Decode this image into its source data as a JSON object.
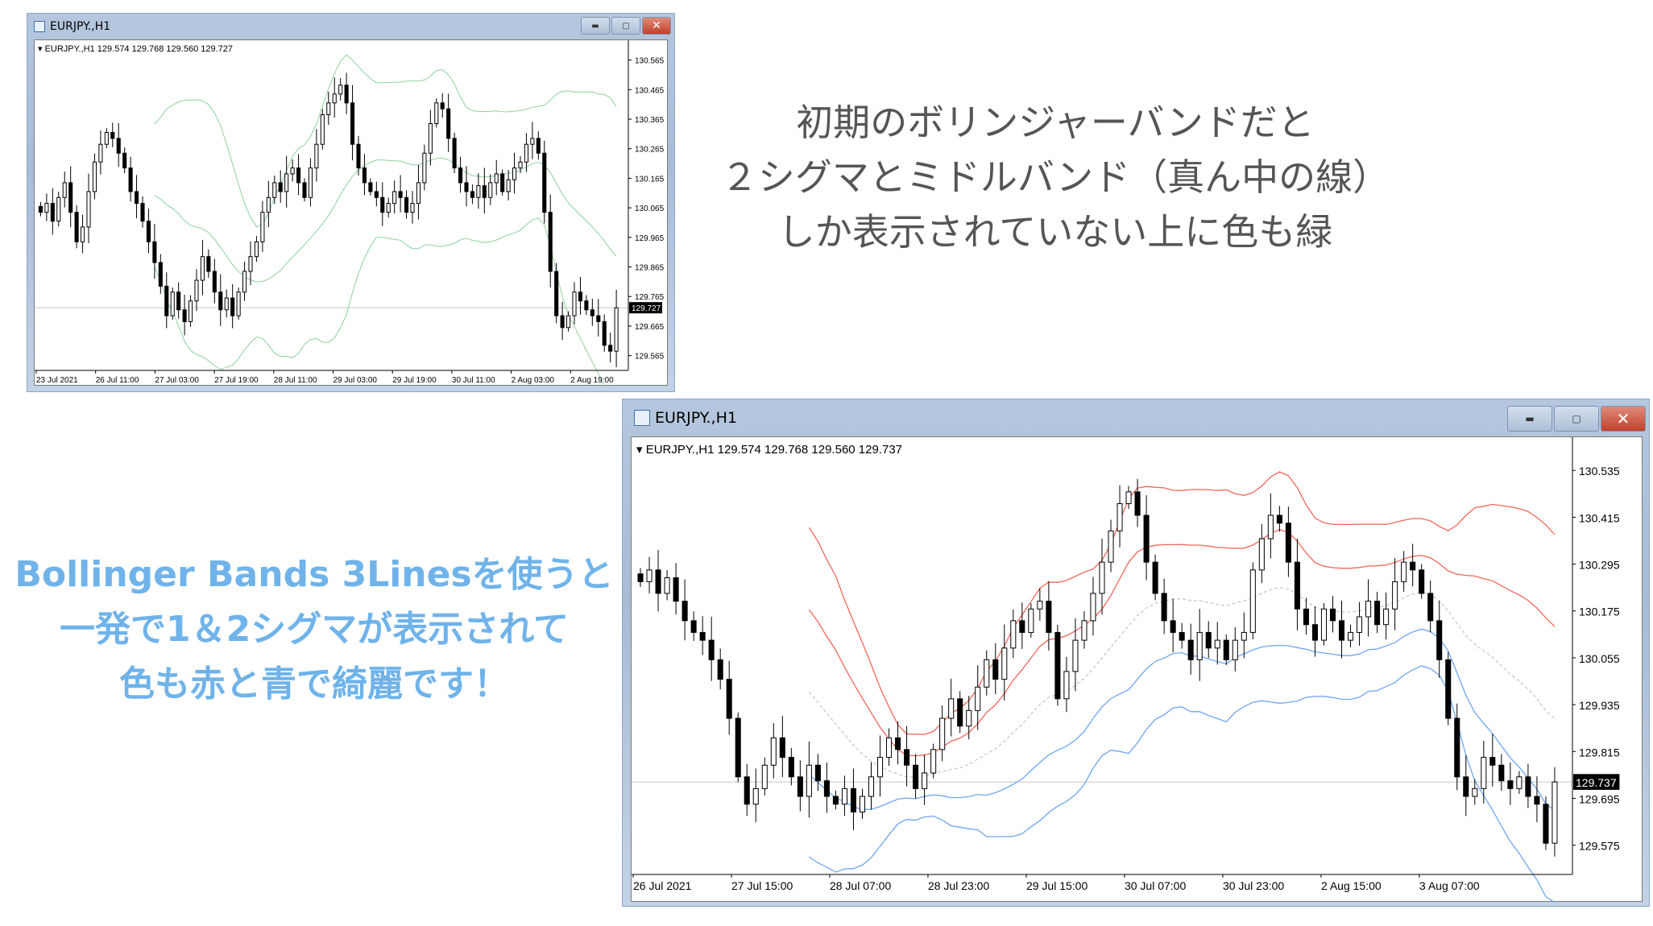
{
  "top_window": {
    "title": "EURJPY.,H1",
    "legend": "EURJPY.,H1  129.574 129.768 129.560 129.727",
    "current_price": "129.727",
    "price_ticks": [
      "130.565",
      "130.465",
      "130.365",
      "130.265",
      "130.165",
      "130.065",
      "129.965",
      "129.865",
      "129.765",
      "129.665",
      "129.565"
    ],
    "time_ticks": [
      "23 Jul 2021",
      "26 Jul 11:00",
      "27 Jul 03:00",
      "27 Jul 19:00",
      "28 Jul 11:00",
      "29 Jul 03:00",
      "29 Jul 19:00",
      "30 Jul 11:00",
      "2 Aug 03:00",
      "2 Aug 19:00"
    ],
    "indicator": "Bollinger Bands (2σ + middle)",
    "band_color": "#8fd19e",
    "closes": [
      130.05,
      130.08,
      130.02,
      130.1,
      130.15,
      130.05,
      129.95,
      130.0,
      130.12,
      130.22,
      130.28,
      130.32,
      130.3,
      130.25,
      130.2,
      130.12,
      130.08,
      130.02,
      129.95,
      129.88,
      129.8,
      129.7,
      129.78,
      129.72,
      129.68,
      129.75,
      129.82,
      129.9,
      129.85,
      129.78,
      129.72,
      129.76,
      129.7,
      129.78,
      129.85,
      129.9,
      129.95,
      130.05,
      130.1,
      130.15,
      130.12,
      130.18,
      130.2,
      130.15,
      130.1,
      130.2,
      130.28,
      130.38,
      130.42,
      130.45,
      130.48,
      130.42,
      130.28,
      130.2,
      130.15,
      130.12,
      130.1,
      130.05,
      130.08,
      130.12,
      130.1,
      130.05,
      130.08,
      130.15,
      130.25,
      130.35,
      130.42,
      130.4,
      130.3,
      130.2,
      130.15,
      130.12,
      130.1,
      130.14,
      130.1,
      130.15,
      130.18,
      130.12,
      130.16,
      130.2,
      130.22,
      130.28,
      130.3,
      130.25,
      130.05,
      129.85,
      129.7,
      129.66,
      129.7,
      129.78,
      129.75,
      129.72,
      129.7,
      129.68,
      129.6,
      129.58,
      129.727
    ]
  },
  "bottom_window": {
    "title": "EURJPY.,H1",
    "legend": "EURJPY.,H1  129.574 129.768 129.560 129.737",
    "current_price": "129.737",
    "price_ticks": [
      "130.535",
      "130.415",
      "130.295",
      "130.175",
      "130.055",
      "129.935",
      "129.815",
      "129.695",
      "129.575"
    ],
    "time_ticks": [
      "26 Jul 2021",
      "27 Jul 15:00",
      "28 Jul 07:00",
      "28 Jul 23:00",
      "29 Jul 15:00",
      "30 Jul 07:00",
      "30 Jul 23:00",
      "2 Aug 15:00",
      "3 Aug 07:00"
    ],
    "indicator": "Bollinger Bands 3Lines (1σ/2σ)",
    "upper_color": "#f0665a",
    "lower_color": "#6ea6f0",
    "middle_color": "#c8c8c8",
    "closes": [
      130.25,
      130.28,
      130.22,
      130.26,
      130.2,
      130.15,
      130.12,
      130.1,
      130.05,
      130.0,
      129.9,
      129.75,
      129.68,
      129.72,
      129.78,
      129.85,
      129.8,
      129.75,
      129.7,
      129.78,
      129.74,
      129.7,
      129.68,
      129.72,
      129.66,
      129.7,
      129.75,
      129.8,
      129.85,
      129.82,
      129.78,
      129.72,
      129.76,
      129.82,
      129.9,
      129.95,
      129.88,
      129.92,
      129.98,
      130.05,
      130.0,
      130.08,
      130.15,
      130.12,
      130.18,
      130.2,
      130.12,
      129.95,
      130.02,
      130.1,
      130.15,
      130.22,
      130.3,
      130.38,
      130.45,
      130.48,
      130.42,
      130.3,
      130.22,
      130.15,
      130.12,
      130.1,
      130.05,
      130.12,
      130.08,
      130.1,
      130.05,
      130.1,
      130.12,
      130.28,
      130.36,
      130.42,
      130.4,
      130.3,
      130.18,
      130.14,
      130.1,
      130.18,
      130.15,
      130.1,
      130.12,
      130.16,
      130.2,
      130.14,
      130.18,
      130.25,
      130.3,
      130.28,
      130.22,
      130.15,
      130.05,
      129.9,
      129.75,
      129.7,
      129.72,
      129.8,
      129.78,
      129.74,
      129.72,
      129.75,
      129.7,
      129.68,
      129.58,
      129.737
    ]
  },
  "annotation_top": {
    "lines": [
      "初期のボリンジャーバンドだと",
      "２シグマとミドルバンド（真ん中の線）",
      "しか表示されていない上に色も緑"
    ],
    "color": "#555555"
  },
  "annotation_left": {
    "lines": [
      "Bollinger Bands 3Linesを使うと",
      "一発で1＆2シグマが表示されて",
      "色も赤と青で綺麗です！"
    ],
    "color": "#6fb3ea"
  }
}
